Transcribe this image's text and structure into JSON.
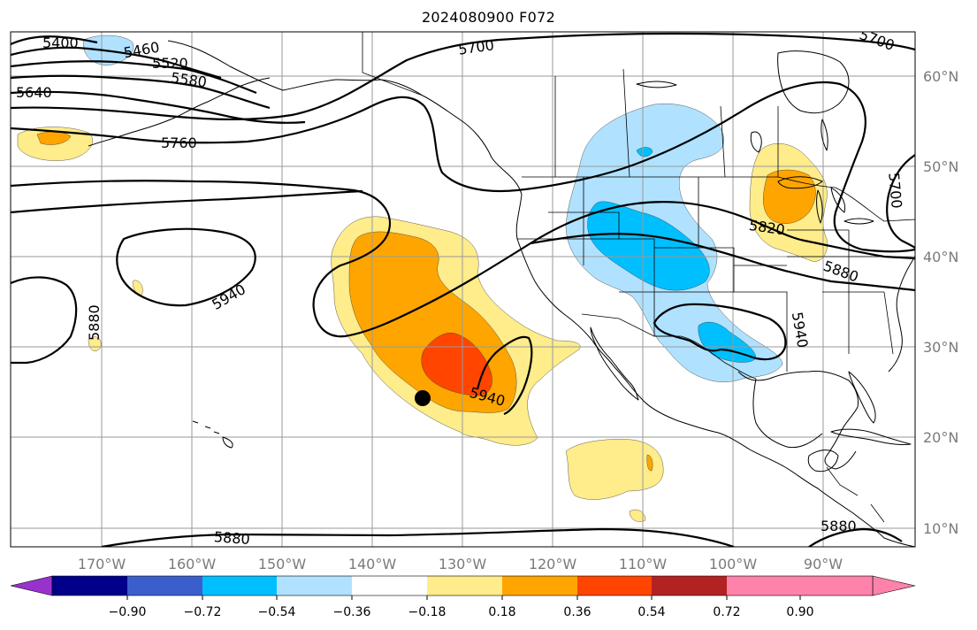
{
  "title": "2024080900 F072",
  "map": {
    "lon_labels": [
      "170°W",
      "160°W",
      "150°W",
      "140°W",
      "130°W",
      "120°W",
      "110°W",
      "100°W",
      "90°W"
    ],
    "lat_labels": [
      "60°N",
      "50°N",
      "40°N",
      "30°N",
      "20°N",
      "10°N"
    ],
    "gridlines": true
  },
  "contours": {
    "labels": [
      "5400",
      "5460",
      "5520",
      "5580",
      "5640",
      "5700",
      "5760",
      "5700",
      "5820",
      "5880",
      "5940",
      "5940",
      "5880",
      "5940",
      "5880",
      "5880"
    ],
    "interval": 60
  },
  "marker": {
    "shape": "filled-circle",
    "color": "#000000"
  },
  "colorbar": {
    "ticks": [
      "−0.90",
      "−0.72",
      "−0.54",
      "−0.36",
      "−0.18",
      "0.18",
      "0.36",
      "0.54",
      "0.72",
      "0.90"
    ],
    "colors": [
      "#9932CC",
      "#00008B",
      "#3A5FCD",
      "#00BFFF",
      "#B0E2FF",
      "#FFFFFF",
      "#FFEC8B",
      "#FFA500",
      "#FF4500",
      "#B22222",
      "#FF82AB"
    ],
    "extend": "both"
  },
  "shading_colors": {
    "pos1": "#FFEC8B",
    "pos2": "#FFA500",
    "pos3": "#FF4500",
    "neg1": "#B0E2FF",
    "neg2": "#00BFFF"
  }
}
